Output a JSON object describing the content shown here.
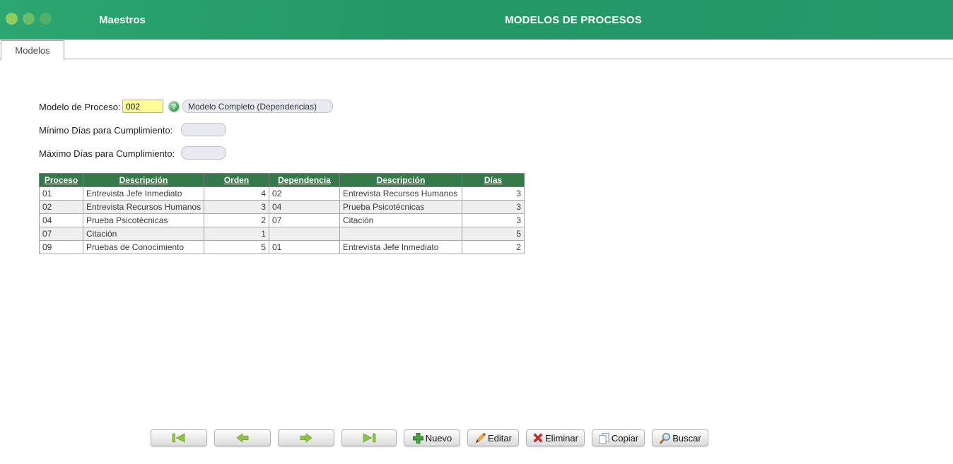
{
  "header": {
    "app_title": "Maestros",
    "page_title": "MODELOS DE PROCESOS",
    "window_dots_icon": "window-dots"
  },
  "tabs": [
    {
      "label": "Modelos",
      "active": true
    }
  ],
  "form": {
    "model": {
      "label": "Modelo de Proceso:",
      "value": "002",
      "help_icon": "help-icon",
      "help_glyph": "?",
      "description": "Modelo Completo (Dependencias)"
    },
    "min_days": {
      "label": "Mínimo Días para Cumplimiento:",
      "value": ""
    },
    "max_days": {
      "label": "Máximo Días para Cumplimiento:",
      "value": ""
    }
  },
  "table": {
    "columns": [
      "Proceso",
      "Descripción",
      "Orden",
      "Dependencia",
      "Descripción",
      "Días"
    ],
    "numeric_columns": [
      2,
      5
    ],
    "rows": [
      [
        "01",
        "Entrevista Jefe Inmediato",
        "4",
        "02",
        "Entrevista Recursos Humanos",
        "3"
      ],
      [
        "02",
        "Entrevista Recursos Humanos",
        "3",
        "04",
        "Prueba Psicotécnicas",
        "3"
      ],
      [
        "04",
        "Prueba Psicotécnicas",
        "2",
        "07",
        "Citación",
        "3"
      ],
      [
        "07",
        "Citación",
        "1",
        "",
        "",
        "5"
      ],
      [
        "09",
        "Pruebas de Conocimiento",
        "5",
        "01",
        "Entrevista Jefe Inmediato",
        "2"
      ]
    ]
  },
  "toolbar": {
    "nav": [
      {
        "icon": "first-record-icon"
      },
      {
        "icon": "previous-record-icon"
      },
      {
        "icon": "next-record-icon"
      },
      {
        "icon": "last-record-icon"
      }
    ],
    "actions": [
      {
        "label": "Nuevo",
        "icon": "plus-icon"
      },
      {
        "label": "Editar",
        "icon": "pencil-icon"
      },
      {
        "label": "Eliminar",
        "icon": "delete-x-icon"
      },
      {
        "label": "Copiar",
        "icon": "copy-icon"
      },
      {
        "label": "Buscar",
        "icon": "search-icon"
      }
    ]
  },
  "colors": {
    "header_green_start": "#2ca670",
    "header_green_end": "#26996a",
    "table_header_green": "#35784a",
    "input_highlight_yellow": "#ffff99",
    "input_gray": "#e8e9f1",
    "row_alt_gray": "#efefef",
    "arrow_green": "#8cc63f",
    "new_plus_green": "#3fa33f",
    "delete_red": "#dd2e2e",
    "pencil_orange": "#f0ad35"
  }
}
